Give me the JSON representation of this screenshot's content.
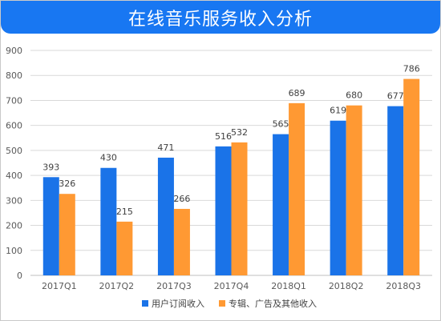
{
  "title": "在线音乐服务收入分析",
  "colors": {
    "title_bar": "#1877f2",
    "series_subscription": "#1a73e8",
    "series_ads": "#ff9933",
    "gridline": "#d9d9d9"
  },
  "chart_data": {
    "type": "bar",
    "title": "在线音乐服务收入分析",
    "categories": [
      "2017Q1",
      "2017Q2",
      "2017Q3",
      "2017Q4",
      "2018Q1",
      "2018Q2",
      "2018Q3"
    ],
    "series": [
      {
        "name": "用户订阅收入",
        "values": [
          393,
          430,
          471,
          516,
          565,
          619,
          677
        ]
      },
      {
        "name": "专辑、广告及其他收入",
        "values": [
          326,
          215,
          266,
          532,
          689,
          680,
          786
        ]
      }
    ],
    "ylim": [
      0,
      900
    ],
    "yticks": [
      0,
      100,
      200,
      300,
      400,
      500,
      600,
      700,
      800,
      900
    ],
    "xlabel": "",
    "ylabel": "",
    "grid": true,
    "legend_position": "bottom",
    "data_labels": true
  }
}
